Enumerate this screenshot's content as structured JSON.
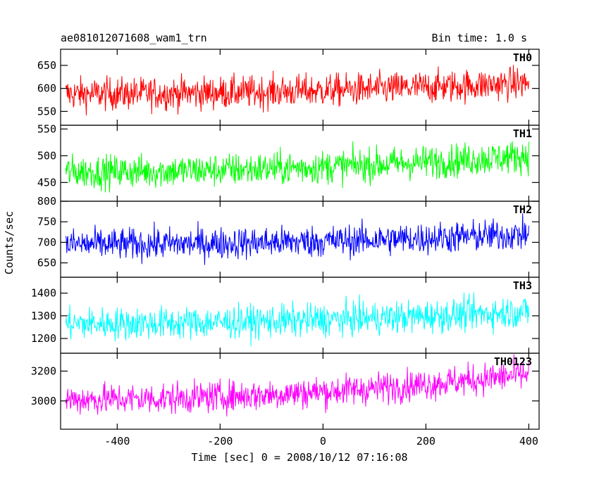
{
  "chart_data": {
    "type": "line",
    "title_left": "ae081012071608_wam1_trn",
    "title_right": "Bin time: 1.0 s",
    "xlabel": "Time [sec] 0 = 2008/10/12 07:16:08",
    "ylabel": "Counts/sec",
    "xlim": [
      -510,
      420
    ],
    "xticks": [
      -400,
      -200,
      0,
      200,
      400
    ],
    "x_range": [
      -500,
      400
    ],
    "x_step": 1,
    "grid": false,
    "panels": [
      {
        "name": "TH0",
        "color": "#ff0000",
        "ylim": [
          520,
          685
        ],
        "yticks": [
          550,
          600,
          650
        ],
        "mean_start": 588,
        "mean_end": 612,
        "noise_amplitude": 32
      },
      {
        "name": "TH1",
        "color": "#00ff00",
        "ylim": [
          415,
          557
        ],
        "yticks": [
          450,
          500,
          550
        ],
        "mean_start": 470,
        "mean_end": 500,
        "noise_amplitude": 28
      },
      {
        "name": "TH2",
        "color": "#0000ff",
        "ylim": [
          615,
          800
        ],
        "yticks": [
          650,
          700,
          750,
          800
        ],
        "mean_start": 695,
        "mean_end": 720,
        "noise_amplitude": 35
      },
      {
        "name": "TH3",
        "color": "#00ffff",
        "ylim": [
          1135,
          1470
        ],
        "yticks": [
          1200,
          1300,
          1400
        ],
        "mean_start": 1265,
        "mean_end": 1320,
        "noise_amplitude": 65
      },
      {
        "name": "TH0123",
        "color": "#ff00ff",
        "ylim": [
          2810,
          3320
        ],
        "yticks": [
          3000,
          3200
        ],
        "mean_start": 3010,
        "mean_end": 3180,
        "noise_amplitude": 95
      }
    ]
  }
}
